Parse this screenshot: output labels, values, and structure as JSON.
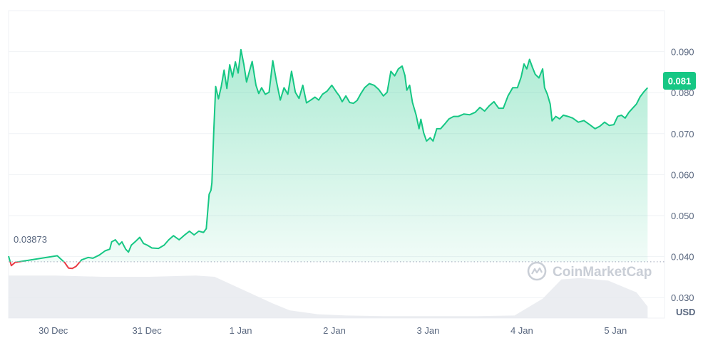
{
  "chart_data": {
    "type": "area",
    "currency_label": "USD",
    "watermark": "CoinMarketCap",
    "start_price_label": "0.03873",
    "current_price_label": "0.081",
    "start_price": 0.03873,
    "current_price": 0.081,
    "ylim": [
      0.025,
      0.1
    ],
    "y_ticks": [
      {
        "value": 0.09,
        "label": "0.090"
      },
      {
        "value": 0.08,
        "label": "0.080"
      },
      {
        "value": 0.07,
        "label": "0.070"
      },
      {
        "value": 0.06,
        "label": "0.060"
      },
      {
        "value": 0.05,
        "label": "0.050"
      },
      {
        "value": 0.04,
        "label": "0.040"
      },
      {
        "value": 0.03,
        "label": "0.030"
      }
    ],
    "x_ticks": [
      {
        "t": 0.5,
        "label": "30 Dec"
      },
      {
        "t": 1.5,
        "label": "31 Dec"
      },
      {
        "t": 2.5,
        "label": "1 Jan"
      },
      {
        "t": 3.5,
        "label": "2 Jan"
      },
      {
        "t": 4.5,
        "label": "3 Jan"
      },
      {
        "t": 5.5,
        "label": "4 Jan"
      },
      {
        "t": 6.5,
        "label": "5 Jan"
      }
    ],
    "xlim": [
      0,
      7
    ],
    "colors": {
      "up": "#16c784",
      "down": "#ea3943",
      "fill_top": "#16c784",
      "grid": "#eff2f5",
      "baseline": "#a1a7bb",
      "volume": "#e6e9ee",
      "badge": "#16c784"
    },
    "series": [
      {
        "values": [
          [
            0.0,
            0.0401
          ],
          [
            0.03,
            0.0378
          ],
          [
            0.07,
            0.0386
          ],
          [
            0.52,
            0.0402
          ],
          [
            0.6,
            0.0385
          ],
          [
            0.64,
            0.0372
          ],
          [
            0.68,
            0.0371
          ],
          [
            0.72,
            0.0376
          ],
          [
            0.78,
            0.0392
          ],
          [
            0.85,
            0.0398
          ],
          [
            0.9,
            0.0396
          ],
          [
            0.97,
            0.0404
          ],
          [
            1.03,
            0.0414
          ],
          [
            1.08,
            0.0418
          ],
          [
            1.1,
            0.0436
          ],
          [
            1.14,
            0.0441
          ],
          [
            1.18,
            0.0429
          ],
          [
            1.21,
            0.0436
          ],
          [
            1.25,
            0.0418
          ],
          [
            1.28,
            0.0411
          ],
          [
            1.31,
            0.0428
          ],
          [
            1.36,
            0.0438
          ],
          [
            1.4,
            0.0447
          ],
          [
            1.44,
            0.0432
          ],
          [
            1.48,
            0.0428
          ],
          [
            1.53,
            0.0421
          ],
          [
            1.6,
            0.042
          ],
          [
            1.66,
            0.0428
          ],
          [
            1.71,
            0.0441
          ],
          [
            1.76,
            0.0451
          ],
          [
            1.82,
            0.0441
          ],
          [
            1.87,
            0.0451
          ],
          [
            1.93,
            0.0462
          ],
          [
            1.98,
            0.0453
          ],
          [
            2.03,
            0.0462
          ],
          [
            2.08,
            0.0459
          ],
          [
            2.11,
            0.0468
          ],
          [
            2.14,
            0.0552
          ],
          [
            2.16,
            0.0562
          ],
          [
            2.17,
            0.058
          ],
          [
            2.19,
            0.0705
          ],
          [
            2.21,
            0.0815
          ],
          [
            2.24,
            0.0785
          ],
          [
            2.27,
            0.0815
          ],
          [
            2.3,
            0.0855
          ],
          [
            2.33,
            0.081
          ],
          [
            2.36,
            0.0868
          ],
          [
            2.39,
            0.0838
          ],
          [
            2.42,
            0.0875
          ],
          [
            2.45,
            0.0848
          ],
          [
            2.48,
            0.0905
          ],
          [
            2.51,
            0.087
          ],
          [
            2.54,
            0.0826
          ],
          [
            2.57,
            0.0852
          ],
          [
            2.6,
            0.0876
          ],
          [
            2.64,
            0.0818
          ],
          [
            2.67,
            0.0798
          ],
          [
            2.7,
            0.0812
          ],
          [
            2.74,
            0.0796
          ],
          [
            2.78,
            0.0801
          ],
          [
            2.82,
            0.0878
          ],
          [
            2.86,
            0.0826
          ],
          [
            2.9,
            0.0782
          ],
          [
            2.94,
            0.0812
          ],
          [
            2.98,
            0.0796
          ],
          [
            3.02,
            0.0852
          ],
          [
            3.06,
            0.0801
          ],
          [
            3.1,
            0.0786
          ],
          [
            3.14,
            0.0818
          ],
          [
            3.18,
            0.0775
          ],
          [
            3.22,
            0.0781
          ],
          [
            3.27,
            0.0789
          ],
          [
            3.31,
            0.0782
          ],
          [
            3.35,
            0.0796
          ],
          [
            3.4,
            0.0804
          ],
          [
            3.45,
            0.0818
          ],
          [
            3.5,
            0.0801
          ],
          [
            3.53,
            0.0792
          ],
          [
            3.56,
            0.0778
          ],
          [
            3.6,
            0.0792
          ],
          [
            3.64,
            0.0776
          ],
          [
            3.68,
            0.0774
          ],
          [
            3.72,
            0.0781
          ],
          [
            3.76,
            0.0798
          ],
          [
            3.8,
            0.0812
          ],
          [
            3.85,
            0.0822
          ],
          [
            3.9,
            0.0818
          ],
          [
            3.95,
            0.0808
          ],
          [
            4.0,
            0.0792
          ],
          [
            4.04,
            0.0801
          ],
          [
            4.08,
            0.0852
          ],
          [
            4.12,
            0.0841
          ],
          [
            4.16,
            0.0858
          ],
          [
            4.2,
            0.0865
          ],
          [
            4.23,
            0.0842
          ],
          [
            4.25,
            0.0806
          ],
          [
            4.28,
            0.0818
          ],
          [
            4.31,
            0.0776
          ],
          [
            4.35,
            0.0745
          ],
          [
            4.38,
            0.0712
          ],
          [
            4.4,
            0.0735
          ],
          [
            4.43,
            0.0702
          ],
          [
            4.46,
            0.0682
          ],
          [
            4.5,
            0.069
          ],
          [
            4.53,
            0.0682
          ],
          [
            4.57,
            0.0712
          ],
          [
            4.61,
            0.0712
          ],
          [
            4.65,
            0.0722
          ],
          [
            4.7,
            0.0736
          ],
          [
            4.75,
            0.0742
          ],
          [
            4.8,
            0.0742
          ],
          [
            4.86,
            0.0748
          ],
          [
            4.92,
            0.0746
          ],
          [
            4.98,
            0.0752
          ],
          [
            5.03,
            0.0764
          ],
          [
            5.08,
            0.0755
          ],
          [
            5.13,
            0.0768
          ],
          [
            5.18,
            0.0778
          ],
          [
            5.23,
            0.0762
          ],
          [
            5.28,
            0.0762
          ],
          [
            5.33,
            0.0792
          ],
          [
            5.38,
            0.0812
          ],
          [
            5.43,
            0.0812
          ],
          [
            5.47,
            0.0838
          ],
          [
            5.5,
            0.087
          ],
          [
            5.53,
            0.0858
          ],
          [
            5.56,
            0.0881
          ],
          [
            5.59,
            0.0862
          ],
          [
            5.62,
            0.0845
          ],
          [
            5.66,
            0.0836
          ],
          [
            5.7,
            0.0858
          ],
          [
            5.72,
            0.0812
          ],
          [
            5.75,
            0.0796
          ],
          [
            5.78,
            0.0772
          ],
          [
            5.8,
            0.0731
          ],
          [
            5.84,
            0.0742
          ],
          [
            5.88,
            0.0736
          ],
          [
            5.92,
            0.0745
          ],
          [
            5.97,
            0.0742
          ],
          [
            6.02,
            0.0738
          ],
          [
            6.08,
            0.0728
          ],
          [
            6.14,
            0.0732
          ],
          [
            6.2,
            0.0722
          ],
          [
            6.26,
            0.0712
          ],
          [
            6.31,
            0.0718
          ],
          [
            6.36,
            0.0728
          ],
          [
            6.41,
            0.072
          ],
          [
            6.46,
            0.0722
          ],
          [
            6.5,
            0.0742
          ],
          [
            6.54,
            0.0745
          ],
          [
            6.58,
            0.0738
          ],
          [
            6.62,
            0.0752
          ],
          [
            6.66,
            0.0762
          ],
          [
            6.7,
            0.0772
          ],
          [
            6.74,
            0.079
          ],
          [
            6.78,
            0.0802
          ],
          [
            6.82,
            0.0812
          ]
        ]
      }
    ],
    "volume": [
      [
        0.0,
        0.66
      ],
      [
        0.5,
        0.66
      ],
      [
        1.0,
        0.64
      ],
      [
        1.5,
        0.64
      ],
      [
        2.0,
        0.66
      ],
      [
        2.2,
        0.64
      ],
      [
        2.5,
        0.44
      ],
      [
        2.8,
        0.24
      ],
      [
        3.0,
        0.12
      ],
      [
        3.3,
        0.06
      ],
      [
        3.6,
        0.04
      ],
      [
        4.0,
        0.03
      ],
      [
        4.5,
        0.03
      ],
      [
        5.0,
        0.03
      ],
      [
        5.4,
        0.04
      ],
      [
        5.7,
        0.3
      ],
      [
        5.9,
        0.6
      ],
      [
        6.1,
        0.62
      ],
      [
        6.4,
        0.58
      ],
      [
        6.7,
        0.4
      ],
      [
        6.82,
        0.18
      ]
    ]
  }
}
